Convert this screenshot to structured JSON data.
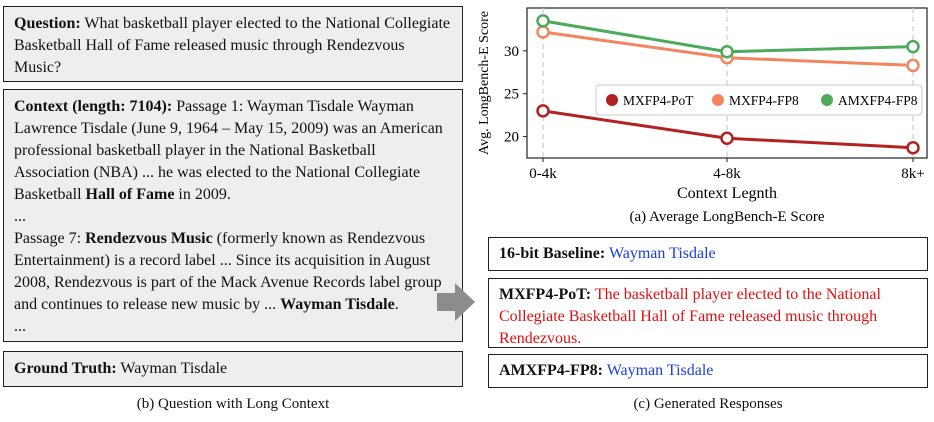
{
  "left": {
    "question": {
      "label": "Question:",
      "text": "What basketball player elected to the National Collegiate Basketball Hall of Fame released music through Rendezvous Music?"
    },
    "context": {
      "label": "Context (length: 7104):",
      "p1a": "Passage 1: Wayman Tisdale Wayman Lawrence Tisdale (June 9, 1964 – May 15, 2009) was an American professional basketball player in the National Basketball Association (NBA) ... he was elected to the National Collegiate Basketball",
      "p1bold": "Hall of Fame",
      "p1b": "in 2009.",
      "ellipsis1": "...",
      "p7a": "Passage 7:",
      "p7bold": "Rendezvous Music",
      "p7b": "(formerly known as Rendezvous Entertainment) is a record label ... Since its acquisition in August 2008, Rendezvous is part of the Mack Avenue Records label group and continues to release new music by ...",
      "p7bold2": "Wayman Tisdale",
      "p7c": ".",
      "ellipsis2": "..."
    },
    "ground_truth": {
      "label": "Ground Truth:",
      "text": "Wayman Tisdale"
    },
    "caption": "(b) Question with Long Context"
  },
  "responses": {
    "baseline": {
      "label": "16-bit Baseline:",
      "text": "Wayman Tisdale",
      "color": "#1a3fe0"
    },
    "pot": {
      "label": "MXFP4-PoT:",
      "text": "The basketball player elected to the National Collegiate Basketball Hall of Fame released music through Rendezvous.",
      "color": "#e01010"
    },
    "amx": {
      "label": "AMXFP4-FP8:",
      "text": "Wayman Tisdale",
      "color": "#1a3fe0"
    },
    "caption": "(c) Generated Responses"
  },
  "chart_data": {
    "type": "line",
    "categories": [
      "0-4k",
      "4-8k",
      "8k+"
    ],
    "series": [
      {
        "name": "MXFP4-PoT",
        "values": [
          23.0,
          19.8,
          18.7
        ],
        "color": "#b22222"
      },
      {
        "name": "MXFP4-FP8",
        "values": [
          32.2,
          29.2,
          28.3
        ],
        "color": "#f28560"
      },
      {
        "name": "AMXFP4-FP8",
        "values": [
          33.5,
          29.9,
          30.5
        ],
        "color": "#4caa5a"
      }
    ],
    "yticks": [
      20,
      25,
      30
    ],
    "ylim": [
      17.5,
      35
    ],
    "xlabel": "Context Legnth",
    "ylabel": "Avg. LongBench-E Score",
    "legend_position": "center-right",
    "grid": "vertical dashed",
    "caption": "(a) Average LongBench-E Score"
  }
}
